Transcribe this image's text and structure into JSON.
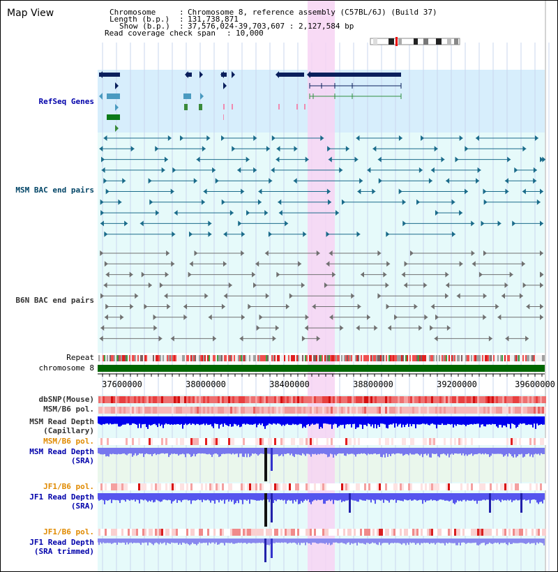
{
  "page": {
    "title": "Map View"
  },
  "header": {
    "chromosome_key": "Chromosome",
    "chromosome_val": "Chromosome 8, reference assembly (C57BL/6J) (Build 37)",
    "length_key": "Length (b.p.)",
    "length_val": "131,738,871",
    "show_key": "Show (b.p.)",
    "show_val": "37,576,024-39,703,607 : 2,127,584 bp",
    "coverage_key": "Read coverage check span",
    "coverage_val": "10,000"
  },
  "tracks": {
    "refseq": "RefSeq Genes",
    "msm_bac": "MSM BAC end pairs",
    "b6n_bac": "B6N BAC end pairs",
    "repeat": "Repeat",
    "chromosome": "chromosome 8",
    "dbsnp": "dbSNP(Mouse)",
    "msm_b6_pol_1": "MSM/B6 pol.",
    "msm_read_depth_cap_1": "MSM Read Depth",
    "msm_read_depth_cap_2": "(Capillary)",
    "msm_b6_pol_2": "MSM/B6 pol.",
    "msm_read_depth_sra_1": "MSM Read Depth",
    "msm_read_depth_sra_2": "(SRA)",
    "jf1_b6_pol_1": "JF1/B6 pol.",
    "jf1_read_depth_sra_1": "JF1 Read Depth",
    "jf1_read_depth_sra_2": "(SRA)",
    "jf1_b6_pol_2": "JF1/B6 pol.",
    "jf1_read_depth_trim_1": "JF1 Read Depth",
    "jf1_read_depth_trim_2": "(SRA trimmed)"
  },
  "axis": {
    "ticks": [
      "37600000",
      "38000000",
      "38400000",
      "38800000",
      "39200000",
      "39600000"
    ]
  },
  "colors": {
    "refseq_bg": "#d7eefc",
    "bac_bg": "#e6fafa",
    "highlight": "#f7d4f3",
    "gene_dark": "#0a1f5c",
    "msm_bac": "#1a6b8a",
    "b6n_bac": "#707070",
    "chromosome": "#006600",
    "depth_blue": "#0000ee",
    "depth_light": "#7777ee",
    "label_blue": "#0000aa",
    "label_orange": "#e08a00",
    "label_teal": "#004466"
  }
}
